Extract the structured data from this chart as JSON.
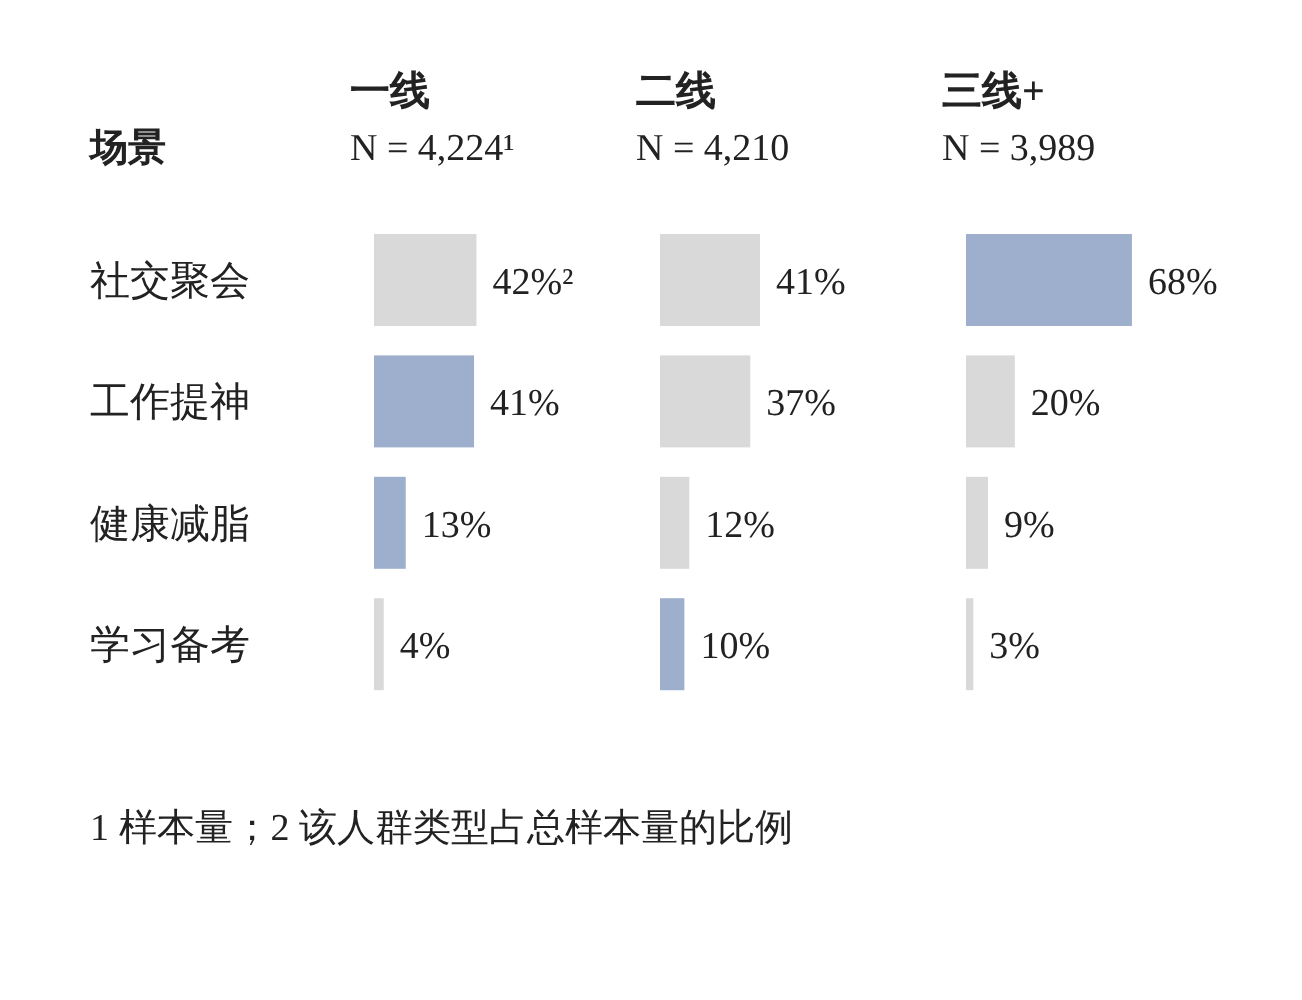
{
  "chart_data": [
    {
      "type": "bar",
      "orientation": "horizontal",
      "title": "一线",
      "subtitle": "N = 4,224¹",
      "ylabel": "场景",
      "tick_labels": "y",
      "categories": [
        "社交聚会",
        "工作提神",
        "健康减脂",
        "学习备考"
      ],
      "values": [
        42,
        41,
        13,
        4
      ],
      "value_labels": [
        "42%²",
        "41%",
        "13%",
        "4%"
      ],
      "colors": [
        "#d9d9d9",
        "#9dafcc",
        "#9dafcc",
        "#d9d9d9"
      ],
      "annotations": [
        "1 样本量；2 该人群类型占总样本量的比例"
      ]
    },
    {
      "type": "bar",
      "orientation": "horizontal",
      "title": "二线",
      "subtitle": "N = 4,210",
      "tick_labels": false,
      "categories": [
        null,
        null,
        null,
        null
      ],
      "values": [
        41,
        37,
        12,
        10
      ],
      "value_labels": [
        "41%",
        "37%",
        "12%",
        "10%"
      ],
      "colors": [
        "#d9d9d9",
        "#d9d9d9",
        "#d9d9d9",
        "#9dafcc"
      ]
    },
    {
      "type": "bar",
      "orientation": "horizontal",
      "title": "三线+",
      "subtitle": "N = 3,989",
      "tick_labels": false,
      "categories": [
        null,
        null,
        null,
        null
      ],
      "values": [
        68,
        20,
        9,
        3
      ],
      "value_labels": [
        "68%",
        "20%",
        "9%",
        "3%"
      ],
      "colors": [
        "#9dafcc",
        "#d9d9d9",
        "#d9d9d9",
        "#d9d9d9"
      ]
    }
  ]
}
